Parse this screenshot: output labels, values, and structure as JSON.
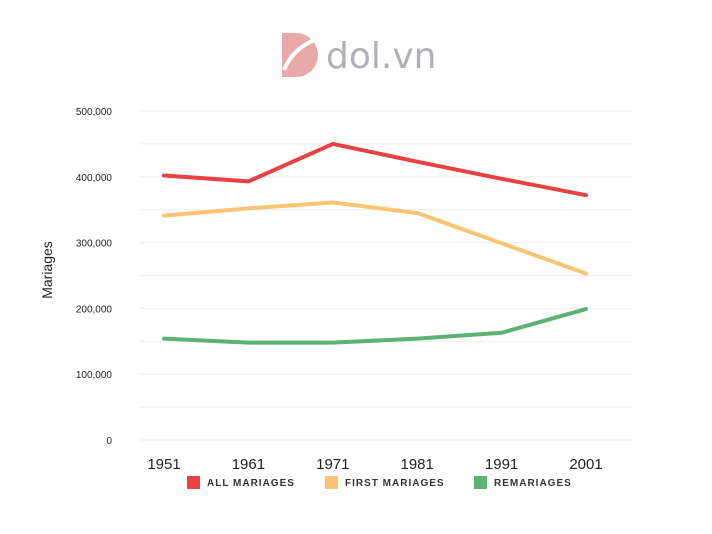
{
  "logo": {
    "text": "dol.vn"
  },
  "chart_data": {
    "type": "line",
    "title": "",
    "xlabel": "",
    "ylabel": "Mariages",
    "categories": [
      "1951",
      "1961",
      "1971",
      "1981",
      "1991",
      "2001"
    ],
    "ylim": [
      0,
      500000
    ],
    "yticks": [
      0,
      100000,
      200000,
      300000,
      400000,
      500000
    ],
    "ytick_labels": [
      "0",
      "100,000",
      "200,000",
      "300,000",
      "400,000",
      "500,000"
    ],
    "grid": true,
    "legend_position": "bottom",
    "series": [
      {
        "name": "ALL MARIAGES",
        "color": "#e84141",
        "values": [
          402000,
          393000,
          450000,
          423000,
          397000,
          372000
        ]
      },
      {
        "name": "FIRST MARIAGES",
        "color": "#fbc473",
        "values": [
          341000,
          352000,
          361000,
          345000,
          299000,
          253000
        ]
      },
      {
        "name": "REMARIAGES",
        "color": "#5bb273",
        "values": [
          154000,
          148000,
          148000,
          154000,
          163000,
          199000
        ]
      }
    ]
  }
}
